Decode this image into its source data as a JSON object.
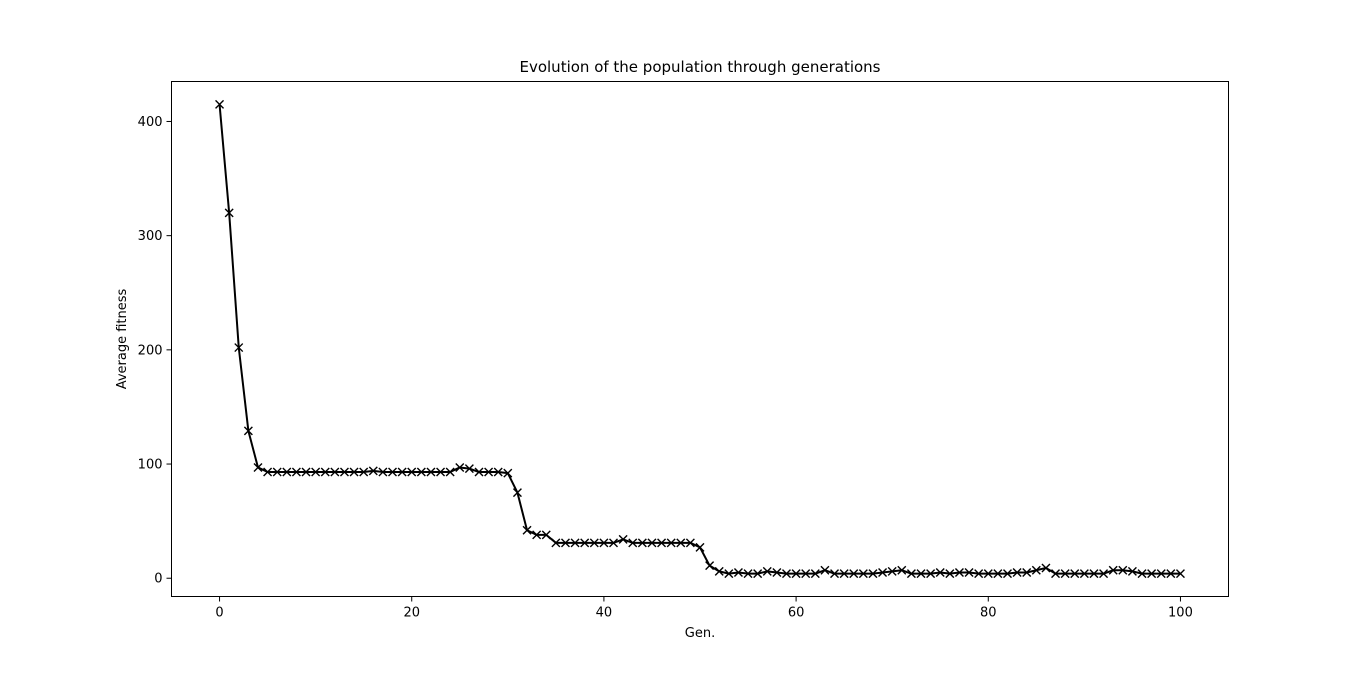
{
  "chart_data": {
    "type": "line",
    "title": "Evolution of the population through generations",
    "xlabel": "Gen.",
    "ylabel": "Average fitness",
    "xlim": [
      -5,
      105
    ],
    "ylim": [
      -16,
      435
    ],
    "xticks": [
      0,
      20,
      40,
      60,
      80,
      100
    ],
    "yticks": [
      0,
      100,
      200,
      300,
      400
    ],
    "grid": false,
    "legend": "none",
    "line_color": "#000000",
    "marker": "x",
    "series": [
      {
        "x": [
          0,
          1,
          2,
          3,
          4,
          5,
          6,
          7,
          8,
          9,
          10,
          11,
          12,
          13,
          14,
          15,
          16,
          17,
          18,
          19,
          20,
          21,
          22,
          23,
          24,
          25,
          26,
          27,
          28,
          29,
          30,
          31,
          32,
          33,
          34,
          35,
          36,
          37,
          38,
          39,
          40,
          41,
          42,
          43,
          44,
          45,
          46,
          47,
          48,
          49,
          50,
          51,
          52,
          53,
          54,
          55,
          56,
          57,
          58,
          59,
          60,
          61,
          62,
          63,
          64,
          65,
          66,
          67,
          68,
          69,
          70,
          71,
          72,
          73,
          74,
          75,
          76,
          77,
          78,
          79,
          80,
          81,
          82,
          83,
          84,
          85,
          86,
          87,
          88,
          89,
          90,
          91,
          92,
          93,
          94,
          95,
          96,
          97,
          98,
          99,
          100
        ],
        "values": [
          415,
          320,
          202,
          129,
          97,
          93,
          93,
          93,
          93,
          93,
          93,
          93,
          93,
          93,
          93,
          93,
          94,
          93,
          93,
          93,
          93,
          93,
          93,
          93,
          93,
          97,
          96,
          93,
          93,
          93,
          92,
          75,
          42,
          38,
          38,
          31,
          31,
          31,
          31,
          31,
          31,
          31,
          34,
          31,
          31,
          31,
          31,
          31,
          31,
          31,
          27,
          11,
          6,
          4,
          5,
          4,
          4,
          6,
          5,
          4,
          4,
          4,
          4,
          7,
          4,
          4,
          4,
          4,
          4,
          5,
          6,
          7,
          4,
          4,
          4,
          5,
          4,
          5,
          5,
          4,
          4,
          4,
          4,
          5,
          5,
          7,
          9,
          4,
          4,
          4,
          4,
          4,
          4,
          7,
          7,
          6,
          4,
          4,
          4,
          4,
          4
        ]
      }
    ]
  }
}
